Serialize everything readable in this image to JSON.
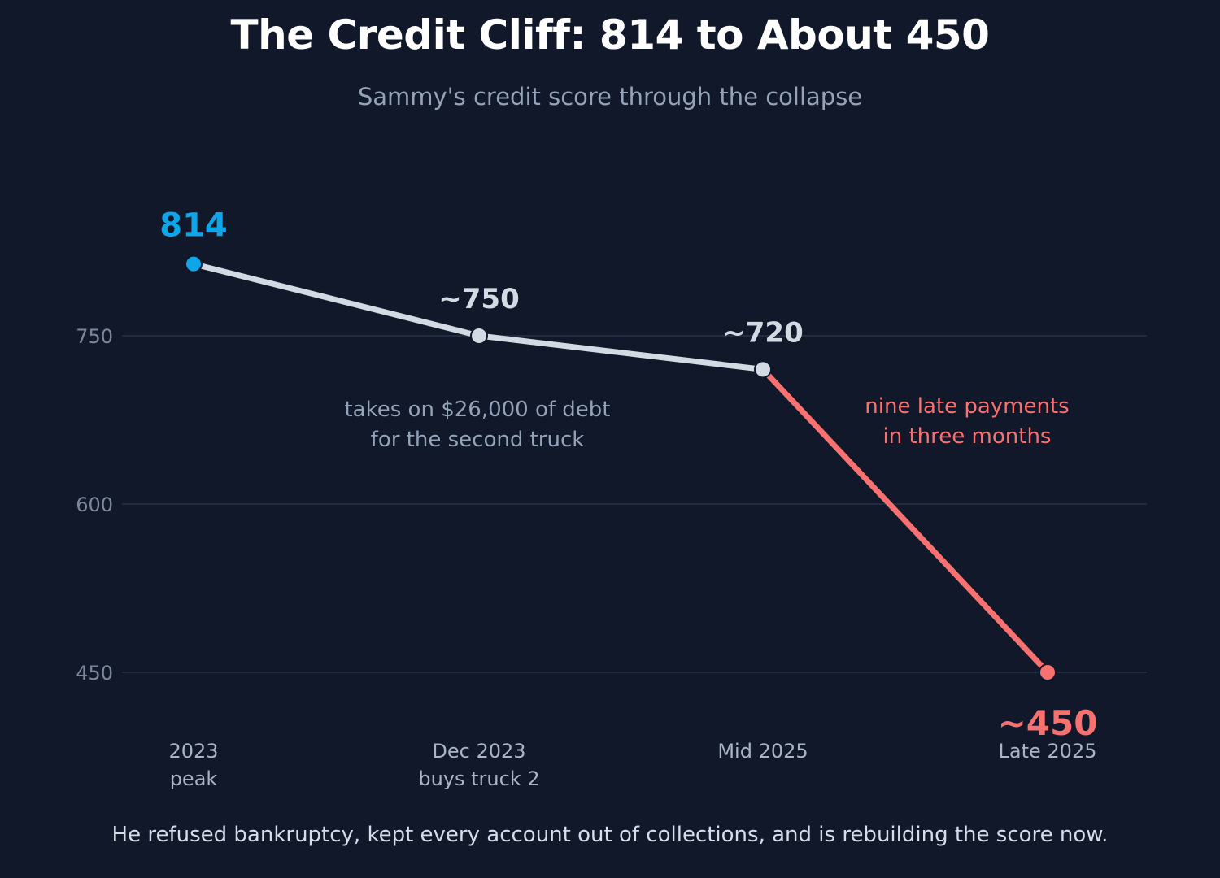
{
  "header": {
    "title": "The Credit Cliff: 814 to About 450",
    "subtitle": "Sammy's credit score through the collapse"
  },
  "footnote": "He refused bankruptcy, kept every account out of collections, and is rebuilding the score now.",
  "colors": {
    "background": "#10182a",
    "line": "#d3dae4",
    "peak": "#0ea5e9",
    "decline": "#f87171",
    "grid": "#253247",
    "annotation": "#94a3b8"
  },
  "chart_data": {
    "type": "line",
    "categories": [
      [
        "2023",
        "peak"
      ],
      [
        "Dec 2023",
        "buys truck 2"
      ],
      [
        "Mid 2025"
      ],
      [
        "Late 2025"
      ]
    ],
    "values": [
      814,
      750,
      720,
      450
    ],
    "value_labels": [
      "814",
      "~750",
      "~720",
      "~450"
    ],
    "yticks": [
      450,
      600,
      750
    ],
    "ylim": [
      410,
      870
    ],
    "grid": true,
    "annotations": [
      {
        "lines": [
          "takes on $26,000 of debt",
          "for the second truck"
        ],
        "near_point": 1,
        "color": "annotation"
      },
      {
        "lines": [
          "nine late payments",
          "in three months"
        ],
        "near_point": 3,
        "color": "decline"
      }
    ]
  }
}
